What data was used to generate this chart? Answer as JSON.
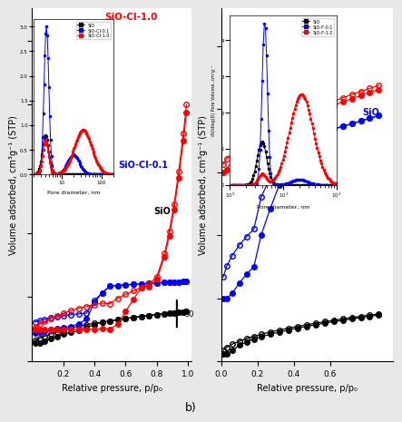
{
  "bg_color": "#e8e8e8",
  "plot_bg": "white",
  "panel_a": {
    "label_red": "SiO-Cl-1.0",
    "label_blue": "SiO-Cl-0.1",
    "label_black": "SiO",
    "legend": [
      "SiO",
      "SiO-Cl-0.1",
      "SiO-Cl-1.0"
    ],
    "scale_bar": "50",
    "inset_legend": [
      "SiO",
      "SiO-Cl-0.1",
      "SiO-Cl-1.0"
    ]
  },
  "panel_b": {
    "label_red": "SiO-F-1.0",
    "label_blue": "SiO",
    "label_black": "SiO",
    "legend": [
      "SiO",
      "SiO-F-0.1",
      "SiO-F-1.0"
    ],
    "inset_legend": [
      "SiO",
      "SiO-F-0.1",
      "SiO-F-1.0"
    ]
  },
  "xlabel": "Relative pressure, p/p₀",
  "ylabel": "Volume adsorbed, cm³g⁻¹ (STP)",
  "inset_xlabel": "Pore diameter, nm",
  "inset_ylabel_b": "dV/dlog(D) Pore Volume, cm³g⁻¹",
  "footnote": "b)"
}
